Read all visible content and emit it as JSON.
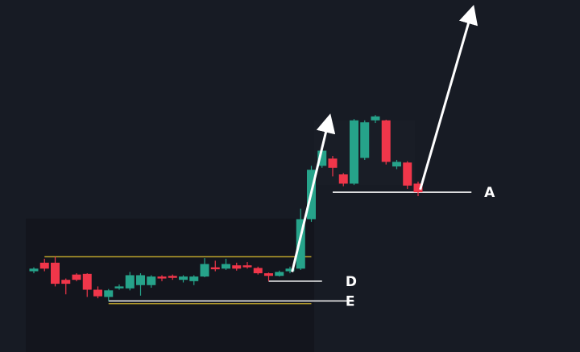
{
  "chart_data": {
    "type": "candlestick",
    "candles": [
      {
        "i": 0,
        "open": 0.3,
        "close": 0.7,
        "high": 0.9,
        "low": 0.0
      },
      {
        "i": 1,
        "open": 1.6,
        "close": 0.7,
        "high": 2.2,
        "low": 0.3
      },
      {
        "i": 2,
        "open": 1.6,
        "close": -1.6,
        "high": 2.5,
        "low": -2.0
      },
      {
        "i": 3,
        "open": -1.0,
        "close": -1.6,
        "high": -0.8,
        "low": -3.2
      },
      {
        "i": 4,
        "open": -0.2,
        "close": -1.0,
        "high": 0.0,
        "low": -1.2
      },
      {
        "i": 5,
        "open": -0.1,
        "close": -2.5,
        "high": 0.0,
        "low": -3.6
      },
      {
        "i": 6,
        "open": -2.5,
        "close": -3.5,
        "high": -2.0,
        "low": -3.8
      },
      {
        "i": 7,
        "open": -3.6,
        "close": -2.6,
        "high": -2.4,
        "low": -4.2
      },
      {
        "i": 8,
        "open": -2.3,
        "close": -2.0,
        "high": -1.7,
        "low": -2.5
      },
      {
        "i": 9,
        "open": -2.3,
        "close": -0.3,
        "high": 0.2,
        "low": -2.6
      },
      {
        "i": 10,
        "open": -1.8,
        "close": -0.3,
        "high": 0.0,
        "low": -3.4
      },
      {
        "i": 11,
        "open": -1.8,
        "close": -0.5,
        "high": -0.3,
        "low": -2.2
      },
      {
        "i": 12,
        "open": -0.5,
        "close": -0.8,
        "high": -0.3,
        "low": -1.2
      },
      {
        "i": 13,
        "open": -0.4,
        "close": -0.7,
        "high": -0.2,
        "low": -1.0
      },
      {
        "i": 14,
        "open": -1.0,
        "close": -0.5,
        "high": -0.3,
        "low": -1.4
      },
      {
        "i": 15,
        "open": -1.2,
        "close": -0.5,
        "high": -0.3,
        "low": -1.8
      },
      {
        "i": 16,
        "open": -0.5,
        "close": 1.4,
        "high": 2.3,
        "low": -0.6
      },
      {
        "i": 17,
        "open": 0.9,
        "close": 0.6,
        "high": 1.9,
        "low": 0.3
      },
      {
        "i": 18,
        "open": 0.7,
        "close": 1.4,
        "high": 2.2,
        "low": 0.5
      },
      {
        "i": 19,
        "open": 1.2,
        "close": 0.7,
        "high": 1.6,
        "low": 0.4
      },
      {
        "i": 20,
        "open": 1.2,
        "close": 0.9,
        "high": 1.7,
        "low": 0.7
      },
      {
        "i": 21,
        "open": 0.8,
        "close": 0.0,
        "high": 1.0,
        "low": -0.2
      },
      {
        "i": 22,
        "open": 0.0,
        "close": -0.4,
        "high": 0.1,
        "low": -1.2
      },
      {
        "i": 23,
        "open": -0.4,
        "close": 0.2,
        "high": 0.4,
        "low": -0.5
      },
      {
        "i": 24,
        "open": 0.3,
        "close": 0.7,
        "high": 1.0,
        "low": 0.0
      },
      {
        "i": 25,
        "open": 0.7,
        "close": 8.2,
        "high": 9.8,
        "low": 0.5
      },
      {
        "i": 26,
        "open": 8.2,
        "close": 15.7,
        "high": 16.3,
        "low": 7.8
      },
      {
        "i": 27,
        "open": 16.3,
        "close": 18.6,
        "high": 19.1,
        "low": 16.0
      },
      {
        "i": 28,
        "open": 17.4,
        "close": 16.0,
        "high": 17.8,
        "low": 14.7
      },
      {
        "i": 29,
        "open": 15.0,
        "close": 13.6,
        "high": 15.2,
        "low": 13.2
      },
      {
        "i": 30,
        "open": 13.6,
        "close": 23.2,
        "high": 23.4,
        "low": 13.4
      },
      {
        "i": 31,
        "open": 17.5,
        "close": 22.9,
        "high": 23.2,
        "low": 17.2
      },
      {
        "i": 32,
        "open": 23.2,
        "close": 23.8,
        "high": 24.0,
        "low": 22.8
      },
      {
        "i": 33,
        "open": 23.2,
        "close": 16.9,
        "high": 23.3,
        "low": 16.5
      },
      {
        "i": 34,
        "open": 16.2,
        "close": 16.9,
        "high": 17.2,
        "low": 15.8
      },
      {
        "i": 35,
        "open": 16.8,
        "close": 13.3,
        "high": 17.0,
        "low": 12.8
      },
      {
        "i": 36,
        "open": 13.6,
        "close": 12.3,
        "high": 13.9,
        "low": 11.7
      }
    ],
    "levels": [
      {
        "name": "resistance",
        "value": 2.5,
        "from": 1,
        "to": 26,
        "color": "#b9a02c"
      },
      {
        "name": "support",
        "value": -4.6,
        "from": 7,
        "to": 26,
        "color": "#b9a02c"
      },
      {
        "name": "D",
        "value": -1.2,
        "from": 22,
        "to": 27,
        "color": "#ffffff"
      },
      {
        "name": "E",
        "value": -4.2,
        "from": 7,
        "to": 30,
        "color": "#ffffff"
      },
      {
        "name": "A",
        "value": 12.3,
        "from": 28,
        "to": 41,
        "color": "#ffffff"
      }
    ],
    "arrows": [
      {
        "from": {
          "i": 24.2,
          "v": 0.2
        },
        "to": {
          "i": 27.6,
          "v": 23.0
        }
      },
      {
        "from": {
          "i": 36.2,
          "v": 12.7
        },
        "to": {
          "i": 41.0,
          "v": 39.5
        }
      }
    ],
    "labels": [
      {
        "text": "A",
        "i": 42.2,
        "v": 12.3
      },
      {
        "text": "D",
        "i": 29.2,
        "v": -1.2
      },
      {
        "text": "E",
        "i": 29.2,
        "v": -4.2
      }
    ],
    "grid": false,
    "legend": "none",
    "colors": {
      "background": "#171b24",
      "up": "#26a38a",
      "down": "#f0364a",
      "level": "#b9a02c",
      "annotation": "#ffffff"
    }
  }
}
